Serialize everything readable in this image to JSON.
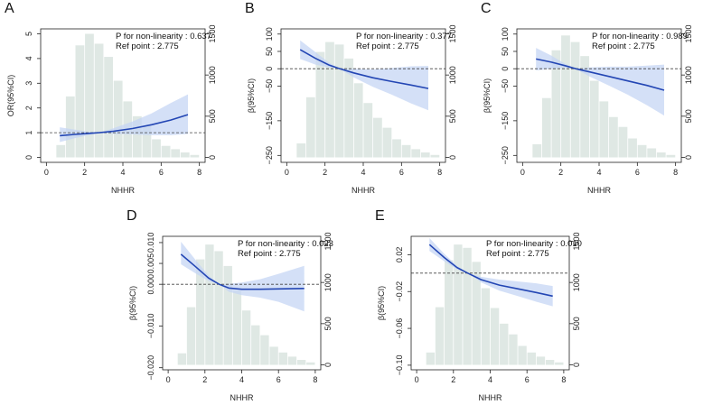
{
  "figure": {
    "panel_letters": [
      "A",
      "B",
      "C",
      "D",
      "E"
    ],
    "colors": {
      "histogram": "#dfe8e4",
      "curve": "#2346b4",
      "band": "#c6d6f4",
      "ref_line": "#444444"
    }
  },
  "chart_data": [
    {
      "panel": "A",
      "type": "line",
      "title": "",
      "xlabel": "NHHR",
      "ylabel": "OR(95%CI)",
      "y2label": "",
      "xlim": [
        -0.3,
        8.3
      ],
      "ylim": [
        -0.2,
        5.2
      ],
      "y2lim": [
        -60,
        1560
      ],
      "xticks": [
        0,
        2,
        4,
        6,
        8
      ],
      "yticks": [
        0,
        1,
        2,
        3,
        4,
        5
      ],
      "ytick_labels": [
        "0",
        "1",
        "2",
        "3",
        "4",
        "5"
      ],
      "y2ticks": [
        0,
        500,
        1000,
        1500
      ],
      "ref_y": 1,
      "annotation": {
        "p_text": "P for non-linearity : 0.637",
        "ref_text": "Ref point : 2.775"
      },
      "histogram": {
        "bin_starts": [
          0.5,
          1.0,
          1.5,
          2.0,
          2.5,
          3.0,
          3.5,
          4.0,
          4.5,
          5.0,
          5.5,
          6.0,
          6.5,
          7.0,
          7.5
        ],
        "bin_width": 0.5,
        "counts": [
          150,
          740,
          1360,
          1500,
          1380,
          1220,
          930,
          680,
          500,
          380,
          220,
          140,
          100,
          60,
          30
        ]
      },
      "curve": {
        "x": [
          0.7,
          1.5,
          2.2,
          2.775,
          3.5,
          4.5,
          5.5,
          6.5,
          7.4
        ],
        "y": [
          0.88,
          0.93,
          0.97,
          1.0,
          1.06,
          1.17,
          1.32,
          1.51,
          1.73
        ],
        "lower": [
          0.62,
          0.78,
          0.9,
          1.0,
          0.95,
          0.93,
          0.9,
          0.9,
          0.95
        ],
        "upper": [
          1.22,
          1.12,
          1.04,
          1.0,
          1.18,
          1.45,
          1.78,
          2.2,
          2.55
        ]
      }
    },
    {
      "panel": "B",
      "type": "line",
      "title": "",
      "xlabel": "NHHR",
      "ylabel": "β(95%CI)",
      "y2label": "",
      "xlim": [
        -0.3,
        8.3
      ],
      "ylim": [
        -270,
        115
      ],
      "y2lim": [
        -60,
        1560
      ],
      "xticks": [
        0,
        2,
        4,
        6,
        8
      ],
      "yticks": [
        100,
        50,
        0,
        -50,
        -150,
        -250
      ],
      "ytick_labels": [
        "100",
        "50",
        "0",
        "−50",
        "−150",
        "−250"
      ],
      "y2ticks": [
        0,
        500,
        1000,
        1500
      ],
      "ref_y": 0,
      "annotation": {
        "p_text": "P for non-linearity : 0.377",
        "ref_text": "Ref point : 2.775"
      },
      "histogram": {
        "bin_starts": [
          0.5,
          1.0,
          1.5,
          2.0,
          2.5,
          3.0,
          3.5,
          4.0,
          4.5,
          5.0,
          5.5,
          6.0,
          6.5,
          7.0,
          7.5
        ],
        "bin_width": 0.5,
        "counts": [
          170,
          730,
          1280,
          1400,
          1370,
          1200,
          900,
          660,
          480,
          360,
          220,
          150,
          100,
          60,
          30
        ]
      },
      "curve": {
        "x": [
          0.7,
          1.5,
          2.2,
          2.775,
          3.5,
          4.5,
          5.5,
          6.5,
          7.4
        ],
        "y": [
          55,
          30,
          11,
          0,
          -12,
          -26,
          -37,
          -47,
          -57
        ],
        "lower": [
          28,
          12,
          4,
          0,
          -25,
          -52,
          -75,
          -100,
          -120
        ],
        "upper": [
          82,
          48,
          18,
          0,
          0,
          -2,
          2,
          7,
          8
        ]
      }
    },
    {
      "panel": "C",
      "type": "line",
      "title": "",
      "xlabel": "NHHR",
      "ylabel": "β(95%CI)",
      "y2label": "",
      "xlim": [
        -0.3,
        8.3
      ],
      "ylim": [
        -270,
        115
      ],
      "y2lim": [
        -60,
        1560
      ],
      "xticks": [
        0,
        2,
        4,
        6,
        8
      ],
      "yticks": [
        100,
        50,
        0,
        -50,
        -150,
        -250
      ],
      "ytick_labels": [
        "100",
        "50",
        "0",
        "−50",
        "−150",
        "−250"
      ],
      "y2ticks": [
        0,
        500,
        1000,
        1500
      ],
      "ref_y": 0,
      "annotation": {
        "p_text": "P for non-linearity : 0.989",
        "ref_text": "Ref point : 2.775"
      },
      "histogram": {
        "bin_starts": [
          0.5,
          1.0,
          1.5,
          2.0,
          2.5,
          3.0,
          3.5,
          4.0,
          4.5,
          5.0,
          5.5,
          6.0,
          6.5,
          7.0,
          7.5
        ],
        "bin_width": 0.5,
        "counts": [
          160,
          720,
          1300,
          1480,
          1400,
          1230,
          930,
          680,
          490,
          370,
          230,
          150,
          110,
          60,
          30
        ]
      },
      "curve": {
        "x": [
          0.7,
          1.5,
          2.2,
          2.775,
          3.5,
          4.5,
          5.5,
          6.5,
          7.4
        ],
        "y": [
          28,
          19,
          9,
          0,
          -9,
          -22,
          -35,
          -48,
          -62
        ],
        "lower": [
          -5,
          0,
          3,
          0,
          -22,
          -48,
          -75,
          -105,
          -135
        ],
        "upper": [
          60,
          38,
          15,
          0,
          4,
          6,
          6,
          9,
          12
        ]
      }
    },
    {
      "panel": "D",
      "type": "line",
      "title": "",
      "xlabel": "NHHR",
      "ylabel": "β(95%CI)",
      "y2label": "",
      "xlim": [
        -0.3,
        8.3
      ],
      "ylim": [
        -0.0205,
        0.0115
      ],
      "y2lim": [
        -60,
        1560
      ],
      "xticks": [
        0,
        2,
        4,
        6,
        8
      ],
      "yticks": [
        0.01,
        0.005,
        0,
        -0.01,
        -0.02
      ],
      "ytick_labels": [
        "0.010",
        "0.005",
        "0.000",
        "−0.010",
        "−0.020"
      ],
      "y2ticks": [
        0,
        500,
        1000,
        1500
      ],
      "ref_y": 0,
      "annotation": {
        "p_text": "P for non-linearity : 0.023",
        "ref_text": "Ref point : 2.775"
      },
      "histogram": {
        "bin_starts": [
          0.5,
          1.0,
          1.5,
          2.0,
          2.5,
          3.0,
          3.5,
          4.0,
          4.5,
          5.0,
          5.5,
          6.0,
          6.5,
          7.0,
          7.5
        ],
        "bin_width": 0.5,
        "counts": [
          140,
          700,
          1280,
          1460,
          1380,
          1200,
          900,
          660,
          480,
          360,
          220,
          150,
          100,
          60,
          30
        ]
      },
      "curve": {
        "x": [
          0.7,
          1.5,
          2.2,
          2.775,
          3.3,
          4.0,
          5.0,
          6.0,
          7.4
        ],
        "y": [
          0.0072,
          0.0042,
          0.0015,
          0,
          -0.0009,
          -0.0012,
          -0.0012,
          -0.0011,
          -0.001
        ],
        "lower": [
          0.0048,
          0.0026,
          0.0008,
          0,
          -0.0018,
          -0.0026,
          -0.0032,
          -0.0042,
          -0.0065
        ],
        "upper": [
          0.0102,
          0.0058,
          0.0021,
          0,
          0.0001,
          0.0004,
          0.0012,
          0.0025,
          0.0044
        ]
      }
    },
    {
      "panel": "E",
      "type": "line",
      "title": "",
      "xlabel": "NHHR",
      "ylabel": "β(95%CI)",
      "y2label": "",
      "xlim": [
        -0.3,
        8.3
      ],
      "ylim": [
        -0.105,
        0.04
      ],
      "y2lim": [
        -60,
        1560
      ],
      "xticks": [
        0,
        2,
        4,
        6,
        8
      ],
      "yticks": [
        0.02,
        -0.02,
        -0.06,
        -0.1
      ],
      "ytick_labels": [
        "0.02",
        "−0.02",
        "−0.06",
        "−0.10"
      ],
      "y2ticks": [
        0,
        500,
        1000,
        1500
      ],
      "ref_y": 0,
      "annotation": {
        "p_text": "P for non-linearity : 0.010",
        "ref_text": "Ref point : 2.775"
      },
      "histogram": {
        "bin_starts": [
          0.5,
          1.0,
          1.5,
          2.0,
          2.5,
          3.0,
          3.5,
          4.0,
          4.5,
          5.0,
          5.5,
          6.0,
          6.5,
          7.0,
          7.5
        ],
        "bin_width": 0.5,
        "counts": [
          150,
          700,
          1270,
          1460,
          1420,
          1250,
          930,
          690,
          500,
          370,
          230,
          150,
          100,
          60,
          30
        ]
      },
      "curve": {
        "x": [
          0.7,
          1.5,
          2.2,
          2.775,
          3.5,
          4.5,
          5.5,
          6.5,
          7.4
        ],
        "y": [
          0.031,
          0.017,
          0.006,
          0,
          -0.007,
          -0.013,
          -0.017,
          -0.021,
          -0.025
        ],
        "lower": [
          0.024,
          0.013,
          0.004,
          0,
          -0.01,
          -0.019,
          -0.025,
          -0.031,
          -0.036
        ],
        "upper": [
          0.038,
          0.021,
          0.008,
          0,
          -0.004,
          -0.007,
          -0.009,
          -0.011,
          -0.014
        ]
      }
    }
  ]
}
